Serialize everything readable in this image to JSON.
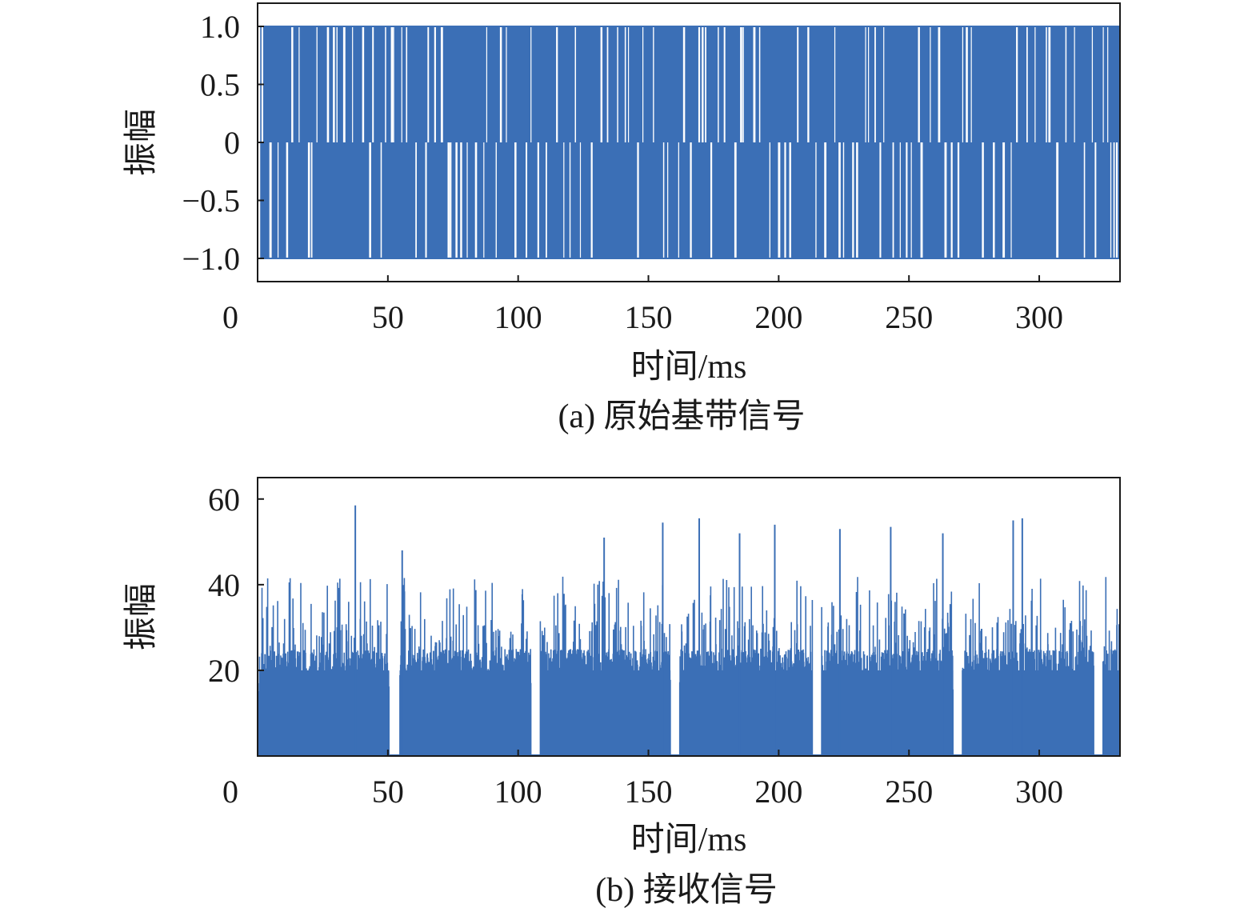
{
  "chart_data": [
    {
      "type": "line",
      "title": "",
      "caption": "(a) 原始基带信号",
      "xlabel": "时间/ms",
      "ylabel": "振幅",
      "xlim": [
        0,
        331
      ],
      "ylim": [
        -1.2,
        1.2
      ],
      "x_ticks": [
        {
          "value": 0,
          "label": "0"
        },
        {
          "value": 50,
          "label": "50"
        },
        {
          "value": 100,
          "label": "100"
        },
        {
          "value": 150,
          "label": "150"
        },
        {
          "value": 200,
          "label": "200"
        },
        {
          "value": 250,
          "label": "250"
        },
        {
          "value": 300,
          "label": "300"
        }
      ],
      "y_ticks": [
        {
          "value": 1.0,
          "label": "1.0"
        },
        {
          "value": 0.5,
          "label": "0.5"
        },
        {
          "value": 0,
          "label": "0"
        },
        {
          "value": -0.5,
          "label": "−0.5"
        },
        {
          "value": -1.0,
          "label": "−1.0"
        }
      ],
      "series": [
        {
          "description": "baseband BPSK-like signal switching between +1.0 and -1.0",
          "levels": [
            1.0,
            -1.0
          ],
          "x_range": [
            1,
            331
          ]
        }
      ],
      "color": "#3b6fb6",
      "grid": false
    },
    {
      "type": "line",
      "title": "",
      "caption": "(b) 接收信号",
      "xlabel": "时间/ms",
      "ylabel": "振幅",
      "xlim": [
        0,
        331
      ],
      "ylim": [
        0,
        65
      ],
      "x_ticks": [
        {
          "value": 0,
          "label": "0"
        },
        {
          "value": 50,
          "label": "50"
        },
        {
          "value": 100,
          "label": "100"
        },
        {
          "value": 150,
          "label": "150"
        },
        {
          "value": 200,
          "label": "200"
        },
        {
          "value": 250,
          "label": "250"
        },
        {
          "value": 300,
          "label": "300"
        }
      ],
      "y_ticks": [
        {
          "value": 20,
          "label": "20"
        },
        {
          "value": 40,
          "label": "40"
        },
        {
          "value": 60,
          "label": "60"
        }
      ],
      "series": [
        {
          "description": "received signal amplitude, bursts of roughly 20-30 with spikes up to ~58, with short gaps near zero",
          "gaps": [
            [
              50.5,
              54.5
            ],
            [
              105,
              108.5
            ],
            [
              158.5,
              162
            ],
            [
              213,
              216.5
            ],
            [
              267,
              270.5
            ],
            [
              321,
              324.5
            ]
          ],
          "peak_spikes": [
            {
              "x": 37.5,
              "y": 58.5
            },
            {
              "x": 55.5,
              "y": 48
            },
            {
              "x": 133,
              "y": 51
            },
            {
              "x": 155.5,
              "y": 54.5
            },
            {
              "x": 169.5,
              "y": 55.5
            },
            {
              "x": 185,
              "y": 52
            },
            {
              "x": 198.5,
              "y": 54
            },
            {
              "x": 223.5,
              "y": 53
            },
            {
              "x": 243,
              "y": 53.5
            },
            {
              "x": 263,
              "y": 52
            },
            {
              "x": 290,
              "y": 55
            },
            {
              "x": 293.5,
              "y": 55.5
            }
          ],
          "typical_level": [
            20,
            30
          ]
        }
      ],
      "color": "#3b6fb6",
      "grid": false
    }
  ]
}
